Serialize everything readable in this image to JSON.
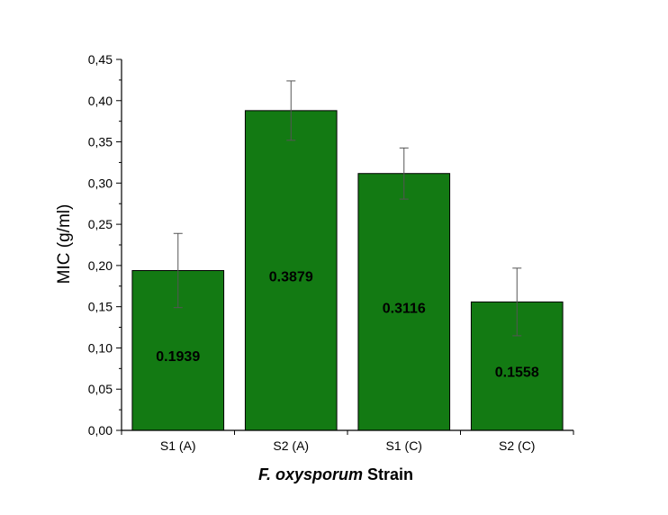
{
  "chart_data": {
    "type": "bar",
    "categories": [
      "S1 (A)",
      "S2 (A)",
      "S1 (C)",
      "S2 (C)"
    ],
    "values": [
      0.1939,
      0.3879,
      0.3116,
      0.1558
    ],
    "data_labels": [
      "0.1939",
      "0.3879",
      "0.3116",
      "0.1558"
    ],
    "error_bars": [
      0.045,
      0.036,
      0.031,
      0.041
    ],
    "ylabel": "MIC (g/ml)",
    "xlabel_italic": "F. oxysporum",
    "xlabel_rest": " Strain",
    "ylim": [
      0,
      0.45
    ],
    "ytick_values": [
      0,
      0.05,
      0.1,
      0.15,
      0.2,
      0.25,
      0.3,
      0.35,
      0.4,
      0.45
    ],
    "ytick_labels": [
      "0,00",
      "0,05",
      "0,10",
      "0,15",
      "0,20",
      "0,25",
      "0,30",
      "0,35",
      "0,40",
      "0,45"
    ],
    "bar_color": "#137a13",
    "bar_edge_color": "#000000",
    "grid": false,
    "legend": "none"
  }
}
